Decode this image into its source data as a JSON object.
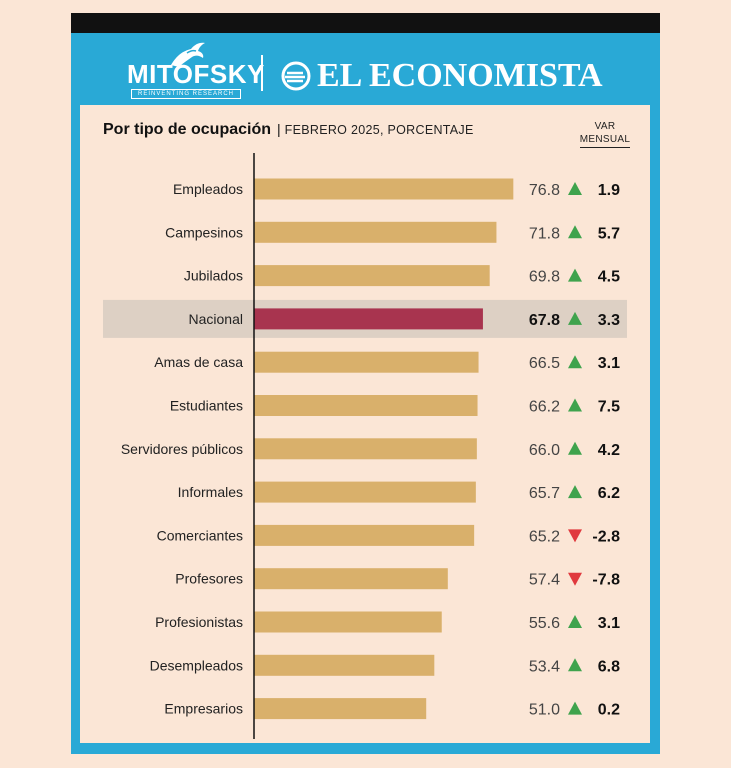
{
  "header": {
    "brand_left": "MITOFSKY",
    "brand_left_tagline": "REINVENTING RESEARCH",
    "brand_right": "EL ECONOMISTA"
  },
  "colors": {
    "frame": "#29a9d6",
    "background": "#fbe6d6",
    "bar": "#d9b06b",
    "highlight_bar": "#a8344f",
    "highlight_row": "#ddd0c4",
    "up_arrow": "#3fa34d",
    "down_arrow": "#e0393e"
  },
  "chart_data": {
    "type": "bar",
    "orientation": "horizontal",
    "title": "Por tipo de ocupación",
    "subtitle": "FEBRERO 2025, PORCENTAJE",
    "change_header": [
      "VAR",
      "MENSUAL"
    ],
    "categories": [
      "Empleados",
      "Campesinos",
      "Jubilados",
      "Nacional",
      "Amas de casa",
      "Estudiantes",
      "Servidores públicos",
      "Informales",
      "Comerciantes",
      "Profesores",
      "Profesionistas",
      "Desempleados",
      "Empresarios"
    ],
    "values": [
      76.8,
      71.8,
      69.8,
      67.8,
      66.5,
      66.2,
      66.0,
      65.7,
      65.2,
      57.4,
      55.6,
      53.4,
      51.0
    ],
    "value_labels": [
      "76.8",
      "71.8",
      "69.8",
      "67.8",
      "66.5",
      "66.2",
      "66.0",
      "65.7",
      "65.2",
      "57.4",
      "55.6",
      "53.4",
      "51.0"
    ],
    "monthly_change": [
      1.9,
      5.7,
      4.5,
      3.3,
      3.1,
      7.5,
      4.2,
      6.2,
      -2.8,
      -7.8,
      3.1,
      6.8,
      0.2
    ],
    "monthly_change_labels": [
      "1.9",
      "5.7",
      "4.5",
      "3.3",
      "3.1",
      "7.5",
      "4.2",
      "6.2",
      "-2.8",
      "-7.8",
      "3.1",
      "6.8",
      "0.2"
    ],
    "highlight": "Nacional",
    "xlim": [
      0,
      77
    ],
    "grid": false,
    "legend": "none"
  }
}
